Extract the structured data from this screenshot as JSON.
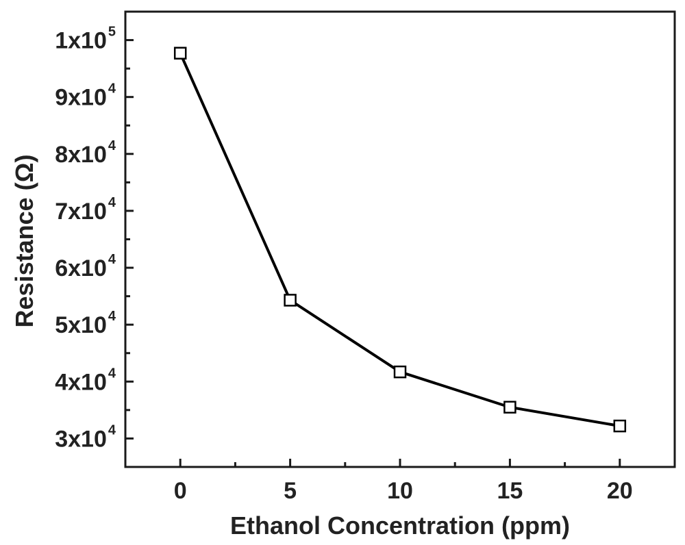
{
  "chart_data": {
    "type": "line",
    "title": "",
    "xlabel": "Ethanol Concentration (ppm)",
    "ylabel": "Resistance (Ω)",
    "xlim": [
      -2.5,
      22.5
    ],
    "ylim": [
      25000,
      105000
    ],
    "x_ticks": [
      0,
      5,
      10,
      15,
      20
    ],
    "x_minor_ticks": [
      2.5,
      7.5,
      12.5,
      17.5
    ],
    "y_ticks": [
      {
        "value": 30000,
        "base": "3x10",
        "exp": "4"
      },
      {
        "value": 40000,
        "base": "4x10",
        "exp": "4"
      },
      {
        "value": 50000,
        "base": "5x10",
        "exp": "4"
      },
      {
        "value": 60000,
        "base": "6x10",
        "exp": "4"
      },
      {
        "value": 70000,
        "base": "7x10",
        "exp": "4"
      },
      {
        "value": 80000,
        "base": "8x10",
        "exp": "4"
      },
      {
        "value": 90000,
        "base": "9x10",
        "exp": "4"
      },
      {
        "value": 100000,
        "base": "1x10",
        "exp": "5"
      }
    ],
    "grid": false,
    "series": [
      {
        "x": [
          0,
          5,
          10,
          15,
          20
        ],
        "values": [
          97700,
          54300,
          41700,
          35500,
          32200
        ],
        "marker": "open-square",
        "color": "#000000"
      }
    ]
  }
}
